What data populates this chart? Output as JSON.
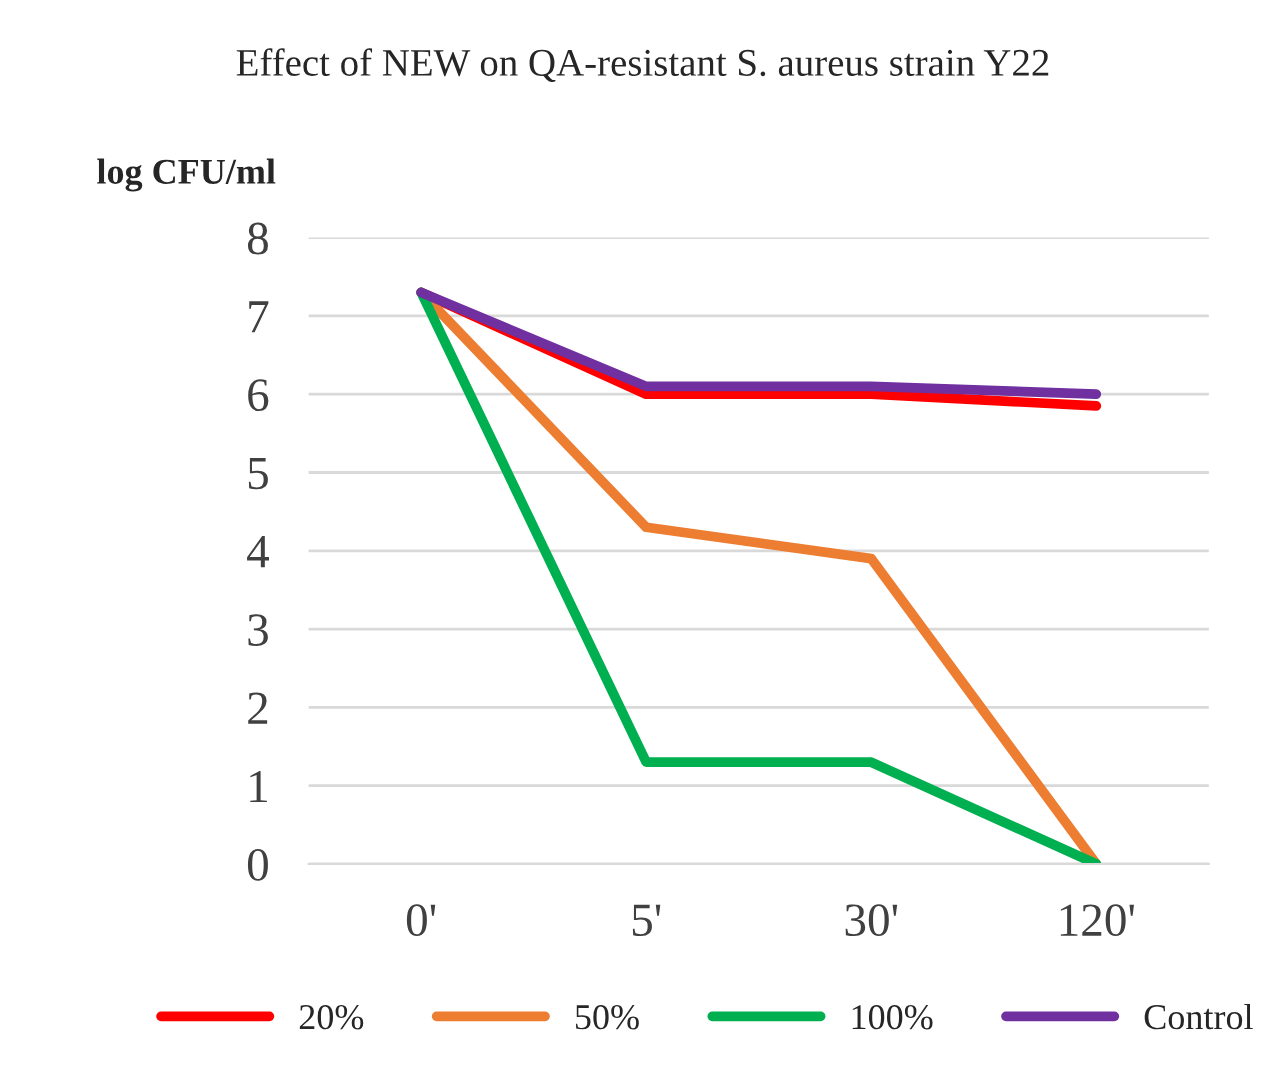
{
  "chart_data": {
    "type": "line",
    "title": "Effect of NEW on QA-resistant S. aureus strain Y22",
    "ylabel": "log CFU/ml",
    "categories": [
      "0'",
      "5'",
      "30'",
      "120'"
    ],
    "series": [
      {
        "name": "20%",
        "color": "#ff0000",
        "values": [
          7.3,
          6.0,
          6.0,
          5.85
        ]
      },
      {
        "name": "50%",
        "color": "#ed7d31",
        "values": [
          7.3,
          4.3,
          3.9,
          0
        ]
      },
      {
        "name": "100%",
        "color": "#00b050",
        "values": [
          7.3,
          1.3,
          1.3,
          0
        ]
      },
      {
        "name": "Control",
        "color": "#7030a0",
        "values": [
          7.3,
          6.1,
          6.1,
          6.0
        ]
      }
    ],
    "ylim": [
      0,
      8
    ],
    "yticks": [
      0,
      1,
      2,
      3,
      4,
      5,
      6,
      7,
      8
    ],
    "grid": "y",
    "legend": "bottom",
    "marker": "none",
    "line_style": "solid"
  }
}
